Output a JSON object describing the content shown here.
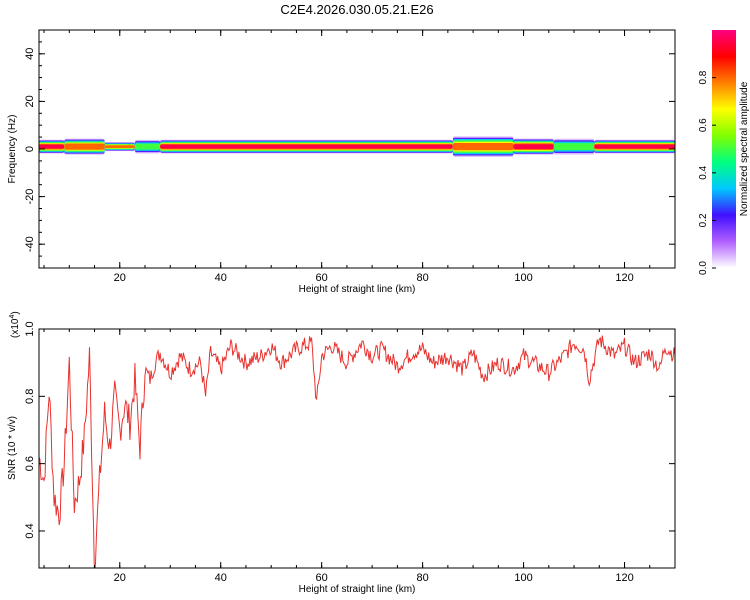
{
  "figure": {
    "title": "C2E4.2026.030.05.21.E26"
  },
  "chart_data": [
    {
      "type": "heatmap",
      "xlabel": "Height of straight line (km)",
      "ylabel": "Frequency (Hz)",
      "xlim": [
        4,
        130
      ],
      "ylim": [
        -50,
        50
      ],
      "xticks": [
        20,
        40,
        60,
        80,
        100,
        120
      ],
      "yticks": [
        -40,
        -20,
        0,
        20,
        40
      ],
      "colorbar": {
        "label": "Normalized spectral amplitude",
        "range": [
          0,
          1
        ],
        "ticks": [
          "0.0",
          "0.2",
          "0.4",
          "0.6",
          "0.8"
        ],
        "colors": [
          "#ffffff",
          "#b060ff",
          "#4010ff",
          "#00c8ff",
          "#00ff80",
          "#80ff00",
          "#ffff00",
          "#ff8000",
          "#ff0000",
          "#ff0080"
        ]
      },
      "band": {
        "center_hz": 1,
        "segments": [
          {
            "x": [
              4,
              9
            ],
            "halfwidth_hz": 3,
            "peak": 0.95
          },
          {
            "x": [
              9,
              17
            ],
            "halfwidth_hz": 3.5,
            "peak": 0.9
          },
          {
            "x": [
              17,
              23
            ],
            "halfwidth_hz": 2,
            "peak": 0.8
          },
          {
            "x": [
              23,
              28
            ],
            "halfwidth_hz": 3,
            "peak": 0.6
          },
          {
            "x": [
              28,
              86
            ],
            "halfwidth_hz": 3,
            "peak": 0.95
          },
          {
            "x": [
              86,
              98
            ],
            "halfwidth_hz": 4.5,
            "peak": 0.85
          },
          {
            "x": [
              98,
              106
            ],
            "halfwidth_hz": 3.5,
            "peak": 0.95
          },
          {
            "x": [
              106,
              114
            ],
            "halfwidth_hz": 3.5,
            "peak": 0.6
          },
          {
            "x": [
              114,
              130
            ],
            "halfwidth_hz": 3,
            "peak": 0.95
          }
        ]
      }
    },
    {
      "type": "line",
      "xlabel": "Height of straight line (km)",
      "ylabel": "SNR (10 * v/v)",
      "yexponent_label": "(x10",
      "yexponent_power": "4",
      "yexponent_close": ")",
      "xlim": [
        4,
        130
      ],
      "ylim": [
        0.29,
        1.0
      ],
      "xticks": [
        20,
        40,
        60,
        80,
        100,
        120
      ],
      "yticks": [
        0.4,
        0.6,
        0.8,
        1.0
      ],
      "series": [
        {
          "color": "#e8322e",
          "x": [
            4,
            5,
            6,
            7,
            8,
            9,
            10,
            11,
            12,
            13,
            14,
            15,
            16,
            17,
            18,
            19,
            20,
            21,
            22,
            23,
            24,
            25,
            26,
            27,
            28,
            30,
            32,
            34,
            36,
            37,
            38,
            40,
            42,
            45,
            48,
            50,
            52,
            55,
            58,
            59,
            60,
            62,
            65,
            68,
            70,
            72,
            75,
            78,
            80,
            82,
            85,
            88,
            90,
            92,
            95,
            98,
            100,
            102,
            105,
            108,
            110,
            112,
            113,
            115,
            118,
            120,
            122,
            125,
            127,
            128,
            130
          ],
          "y": [
            0.62,
            0.55,
            0.82,
            0.5,
            0.45,
            0.6,
            0.9,
            0.48,
            0.55,
            0.68,
            0.92,
            0.3,
            0.55,
            0.75,
            0.65,
            0.8,
            0.7,
            0.78,
            0.72,
            0.85,
            0.65,
            0.88,
            0.85,
            0.9,
            0.93,
            0.87,
            0.92,
            0.88,
            0.9,
            0.8,
            0.93,
            0.88,
            0.95,
            0.9,
            0.92,
            0.95,
            0.9,
            0.94,
            0.96,
            0.78,
            0.92,
            0.95,
            0.9,
            0.96,
            0.92,
            0.94,
            0.89,
            0.93,
            0.94,
            0.9,
            0.92,
            0.88,
            0.93,
            0.86,
            0.9,
            0.88,
            0.92,
            0.9,
            0.87,
            0.92,
            0.96,
            0.94,
            0.85,
            0.97,
            0.92,
            0.95,
            0.9,
            0.93,
            0.88,
            0.95,
            0.92
          ]
        }
      ]
    }
  ]
}
